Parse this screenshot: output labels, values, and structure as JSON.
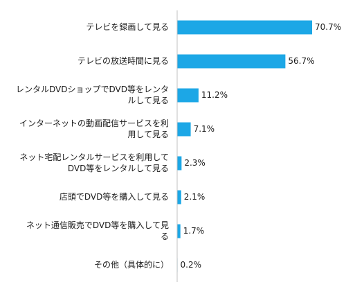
{
  "chart_data": {
    "type": "bar",
    "orientation": "horizontal",
    "categories": [
      [
        "テレビを録画して見る"
      ],
      [
        "テレビの放送時間に見る"
      ],
      [
        "レンタルDVDショップでDVD等をレンタ",
        "ルして見る"
      ],
      [
        "インターネットの動画配信サービスを利",
        "用して見る"
      ],
      [
        "ネット宅配レンタルサービスを利用して",
        "DVD等をレンタルして見る"
      ],
      [
        "店頭でDVD等を購入して見る"
      ],
      [
        "ネット通信販売でDVD等を購入して見",
        "る"
      ],
      [
        "その他（具体的に）"
      ]
    ],
    "values": [
      70.7,
      56.7,
      11.2,
      7.1,
      2.3,
      2.1,
      1.7,
      0.2
    ],
    "value_labels": [
      "70.7%",
      "56.7%",
      "11.2%",
      "7.1%",
      "2.3%",
      "2.1%",
      "1.7%",
      "0.2%"
    ],
    "xlim": [
      0,
      70.7
    ],
    "bar_color": "#1ca7e6",
    "axis_color": "#c0c0c0",
    "grid": false,
    "legend": "none"
  }
}
